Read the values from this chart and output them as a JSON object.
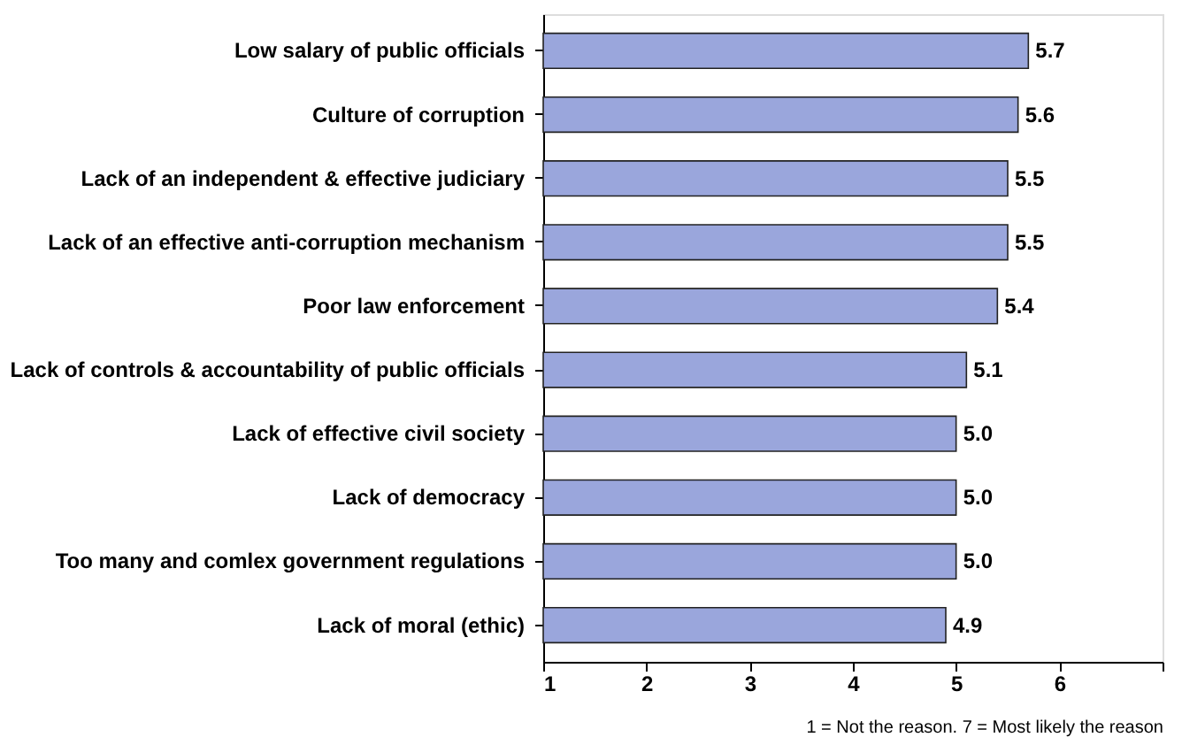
{
  "chart_data": {
    "type": "bar",
    "orientation": "horizontal",
    "categories": [
      "Low salary of public officials",
      "Culture of corruption",
      "Lack of an independent & effective judiciary",
      "Lack of an effective anti-corruption mechanism",
      "Poor law enforcement",
      "Lack of controls & accountability of public officials",
      "Lack of effective civil society",
      "Lack of democracy",
      "Too many and comlex government regulations",
      "Lack of moral (ethic)"
    ],
    "values": [
      5.7,
      5.6,
      5.5,
      5.5,
      5.4,
      5.1,
      5.0,
      5.0,
      5.0,
      4.9
    ],
    "value_labels": [
      "5.7",
      "5.6",
      "5.5",
      "5.5",
      "5.4",
      "5.1",
      "5.0",
      "5.0",
      "5.0",
      "4.9"
    ],
    "color": "#9aa6dc",
    "xlim": [
      1,
      7
    ],
    "xticks": [
      1,
      2,
      3,
      4,
      5,
      6,
      {
        "value": 7,
        "label": null
      }
    ],
    "grid": false,
    "annotations": [
      "1 = Not the reason. 7 = Most likely the reason"
    ]
  }
}
